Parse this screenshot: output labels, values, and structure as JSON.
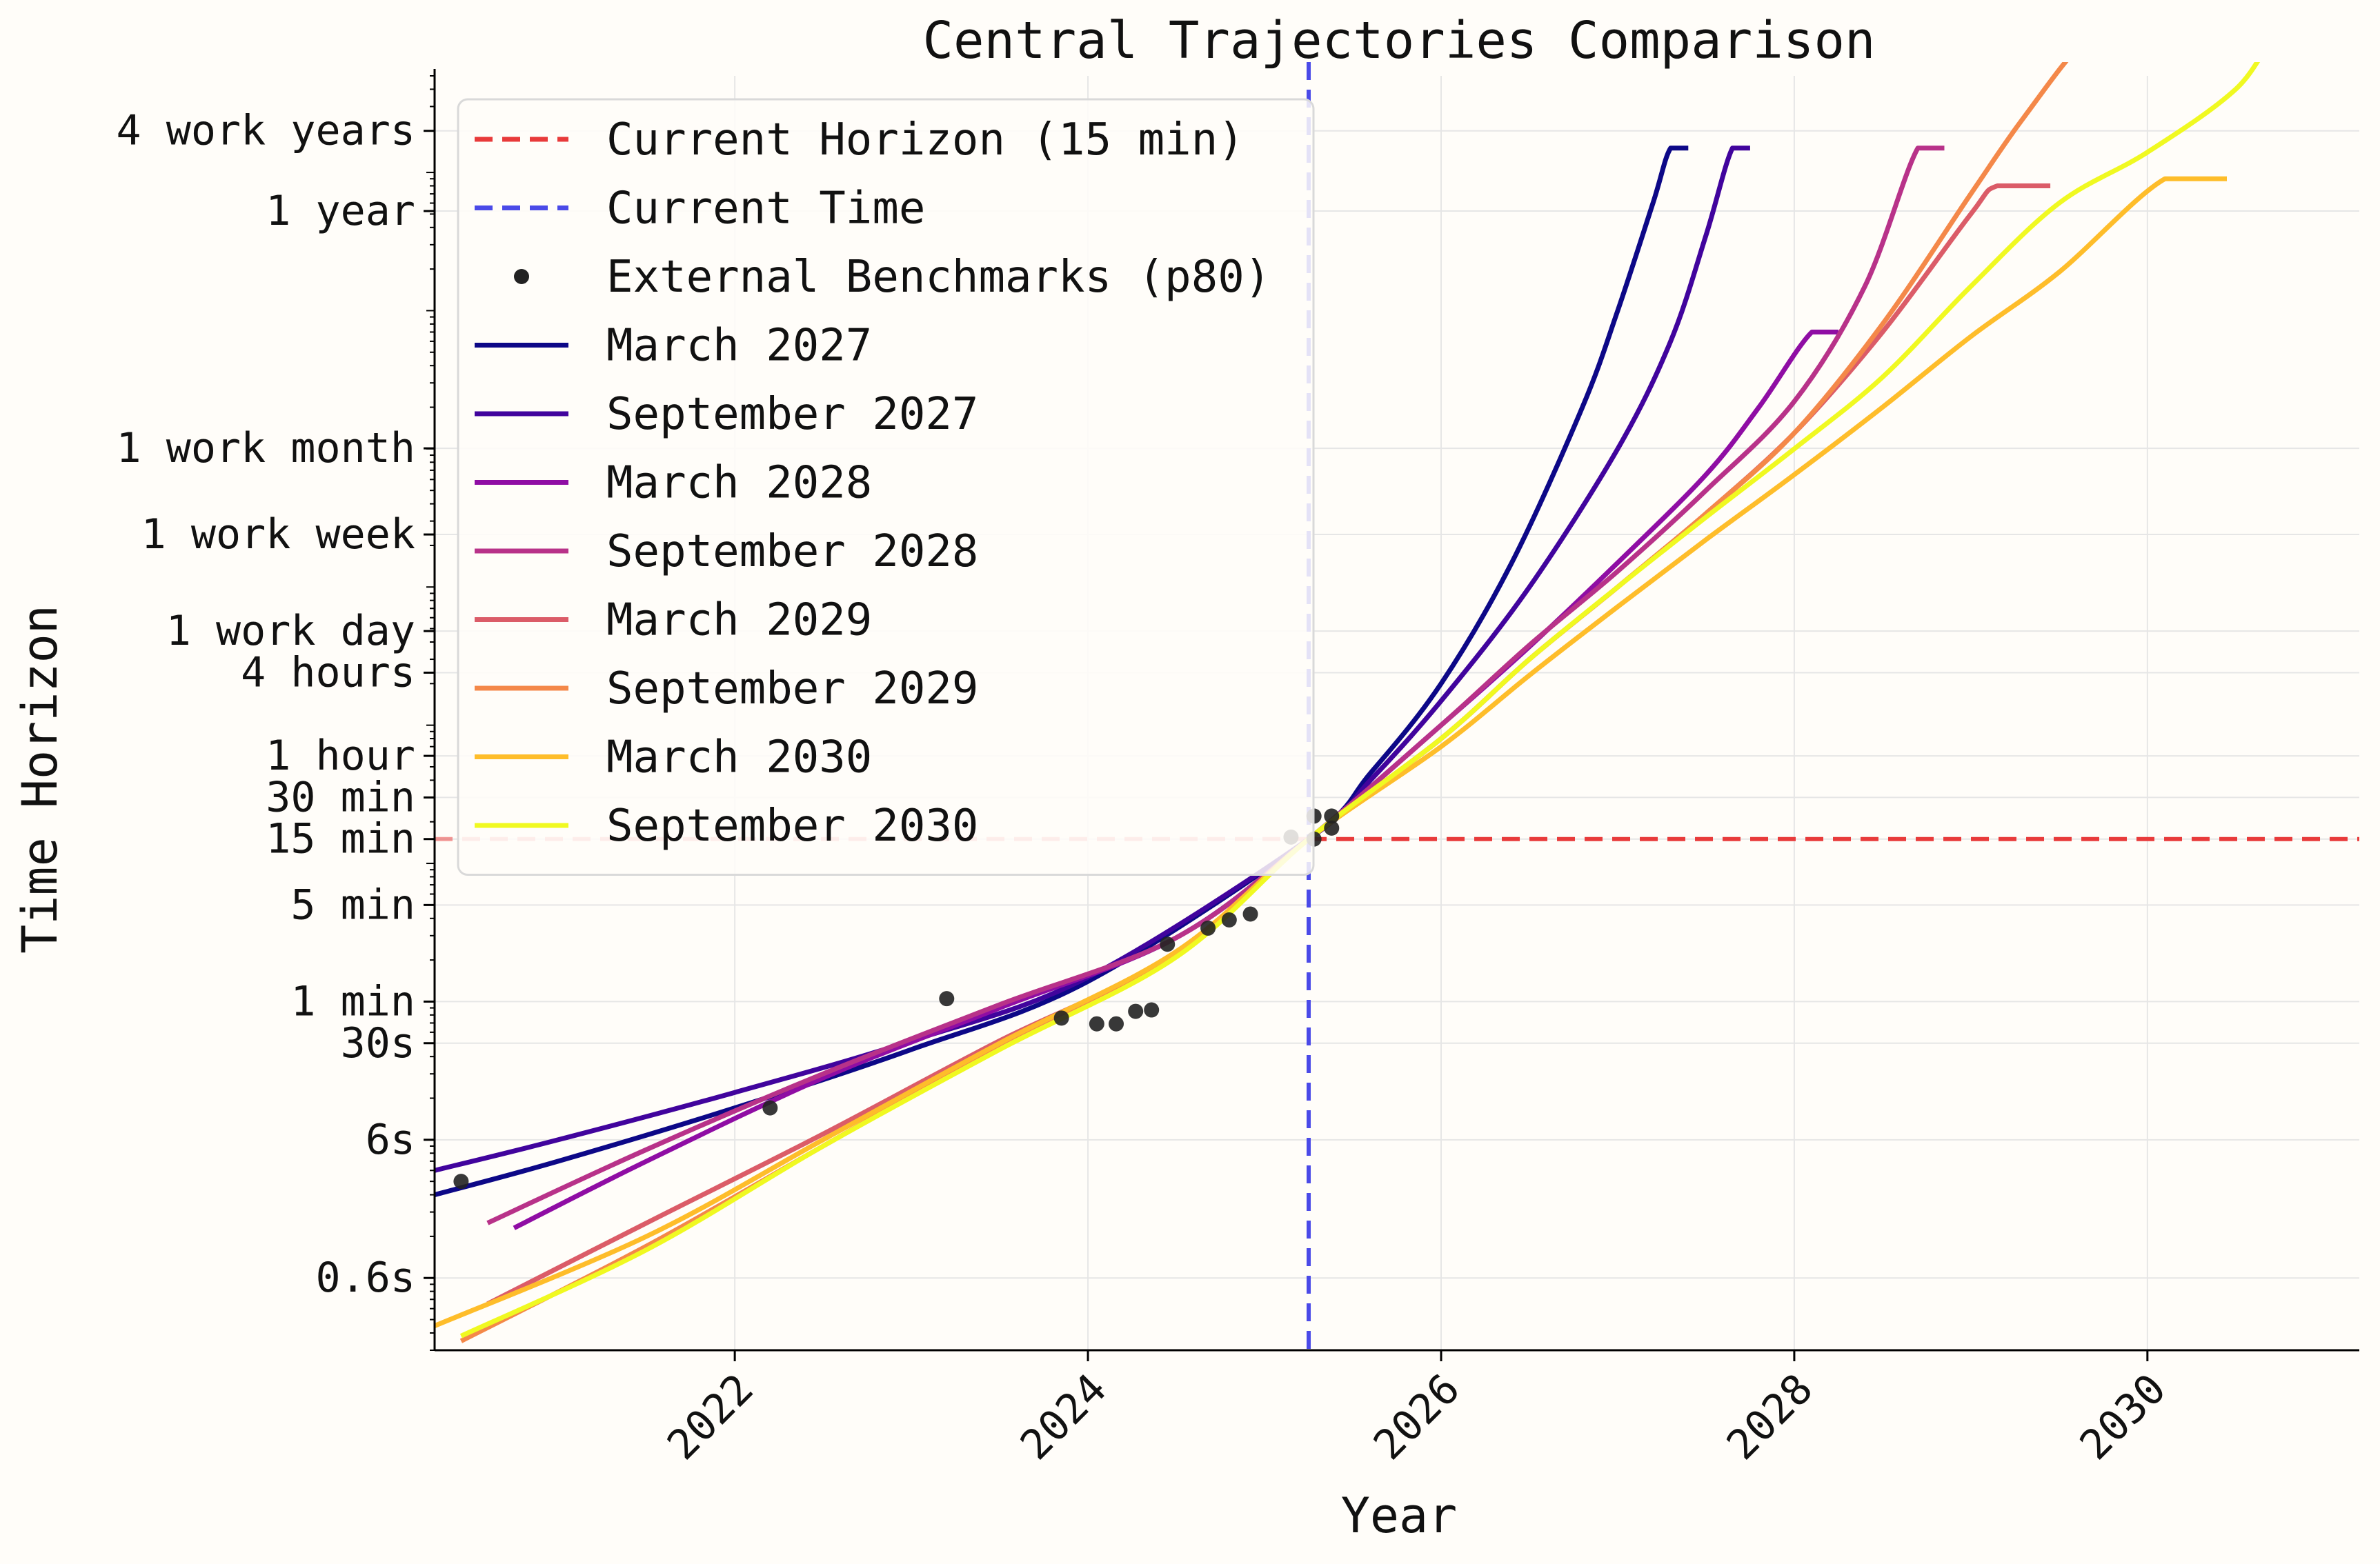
{
  "chart_data": {
    "type": "line",
    "title": "Central Trajectories Comparison",
    "xlabel": "Year",
    "ylabel": "Time Horizon",
    "y_scale": "log",
    "y_unit": "minutes",
    "xlim": [
      2020.3,
      2031.2
    ],
    "ylim": [
      0.003,
      5000000
    ],
    "grid": true,
    "legend_position": "top-left",
    "x_ticks": [
      {
        "value": 2022,
        "label": "2022"
      },
      {
        "value": 2024,
        "label": "2024"
      },
      {
        "value": 2026,
        "label": "2026"
      },
      {
        "value": 2028,
        "label": "2028"
      },
      {
        "value": 2030,
        "label": "2030"
      }
    ],
    "y_ticks": [
      {
        "value": 0.01,
        "label": "0.6s"
      },
      {
        "value": 0.1,
        "label": "6s"
      },
      {
        "value": 0.5,
        "label": "30s"
      },
      {
        "value": 1,
        "label": "1 min"
      },
      {
        "value": 5,
        "label": "5 min"
      },
      {
        "value": 15,
        "label": "15 min"
      },
      {
        "value": 30,
        "label": "30 min"
      },
      {
        "value": 60,
        "label": "1 hour"
      },
      {
        "value": 240,
        "label": "4 hours"
      },
      {
        "value": 480,
        "label": "1 work day"
      },
      {
        "value": 2400,
        "label": "1 work week"
      },
      {
        "value": 10080,
        "label": "1 work month"
      },
      {
        "value": 525600,
        "label": "1 year"
      },
      {
        "value": 2000000,
        "label": "4 work years"
      }
    ],
    "reference_lines": [
      {
        "name": "Current Horizon (15 min)",
        "orientation": "horizontal",
        "value": 15,
        "color": "#e83a3a",
        "style": "dashed"
      },
      {
        "name": "Current Time",
        "orientation": "vertical",
        "value": 2025.25,
        "color": "#4a4ae8",
        "style": "dashed"
      }
    ],
    "benchmarks": {
      "name": "External Benchmarks (p80)",
      "color": "#222222",
      "points": [
        {
          "x": 2020.45,
          "y": 0.05
        },
        {
          "x": 2022.2,
          "y": 0.17
        },
        {
          "x": 2023.2,
          "y": 1.05
        },
        {
          "x": 2023.85,
          "y": 0.76
        },
        {
          "x": 2024.05,
          "y": 0.69
        },
        {
          "x": 2024.16,
          "y": 0.69
        },
        {
          "x": 2024.27,
          "y": 0.85
        },
        {
          "x": 2024.36,
          "y": 0.87
        },
        {
          "x": 2024.45,
          "y": 2.6
        },
        {
          "x": 2024.68,
          "y": 3.4
        },
        {
          "x": 2024.8,
          "y": 3.9
        },
        {
          "x": 2024.92,
          "y": 4.3
        },
        {
          "x": 2025.15,
          "y": 15.5
        },
        {
          "x": 2025.28,
          "y": 15
        },
        {
          "x": 2025.28,
          "y": 22
        },
        {
          "x": 2025.38,
          "y": 22
        },
        {
          "x": 2025.38,
          "y": 18
        }
      ]
    },
    "series": [
      {
        "name": "March 2027",
        "color": "#0d0887",
        "x": [
          2020.3,
          2021.0,
          2022.0,
          2023.0,
          2024.0,
          2025.25,
          2025.6,
          2026.0,
          2026.4,
          2026.8,
          2027.0,
          2027.2,
          2027.3,
          2027.4
        ],
        "y": [
          0.04,
          0.07,
          0.17,
          0.45,
          1.4,
          15,
          45,
          200,
          1500,
          20000,
          100000,
          600000,
          1500000,
          1500000
        ]
      },
      {
        "name": "September 2027",
        "color": "#41049d",
        "x": [
          2020.3,
          2021.0,
          2022.0,
          2023.0,
          2024.0,
          2025.25,
          2025.6,
          2026.0,
          2026.5,
          2027.0,
          2027.3,
          2027.5,
          2027.65,
          2027.75
        ],
        "y": [
          0.06,
          0.1,
          0.22,
          0.52,
          1.5,
          15,
          40,
          150,
          1000,
          10000,
          60000,
          350000,
          1500000,
          1500000
        ]
      },
      {
        "name": "March 2028",
        "color": "#8f0da4",
        "x": [
          2020.75,
          2021.5,
          2022.5,
          2023.5,
          2024.5,
          2025.25,
          2026.0,
          2026.5,
          2027.0,
          2027.5,
          2027.8,
          2028.1,
          2028.25
        ],
        "y": [
          0.023,
          0.07,
          0.28,
          0.9,
          2.9,
          15,
          100,
          370,
          1500,
          6500,
          20000,
          70000,
          70000
        ]
      },
      {
        "name": "September 2028",
        "color": "#b83289",
        "x": [
          2020.6,
          2021.5,
          2022.5,
          2023.5,
          2024.5,
          2025.25,
          2026.0,
          2026.5,
          2027.0,
          2027.5,
          2028.0,
          2028.4,
          2028.7,
          2028.85
        ],
        "y": [
          0.025,
          0.085,
          0.3,
          0.95,
          2.9,
          15,
          100,
          380,
          1300,
          5000,
          22000,
          150000,
          1500000,
          1500000
        ]
      },
      {
        "name": "March 2029",
        "color": "#db5c68",
        "x": [
          2020.6,
          2021.5,
          2022.5,
          2023.5,
          2024.5,
          2025.25,
          2026.0,
          2026.5,
          2027.0,
          2027.5,
          2028.0,
          2028.5,
          2029.0,
          2029.15,
          2029.45
        ],
        "y": [
          0.0065,
          0.025,
          0.11,
          0.52,
          2.2,
          15,
          80,
          300,
          1000,
          3400,
          13000,
          70000,
          500000,
          800000,
          800000
        ]
      },
      {
        "name": "September 2029",
        "color": "#f48849",
        "x": [
          2020.45,
          2021.5,
          2022.5,
          2023.5,
          2024.5,
          2025.25,
          2026.0,
          2026.5,
          2027.0,
          2027.5,
          2028.0,
          2028.5,
          2029.0,
          2029.3,
          2029.65,
          2029.85
        ],
        "y": [
          0.0035,
          0.017,
          0.09,
          0.48,
          2.2,
          15,
          80,
          300,
          1000,
          3400,
          13000,
          80000,
          700000,
          2500000,
          9000000,
          9000000
        ]
      },
      {
        "name": "March 2030",
        "color": "#febd2a",
        "x": [
          2020.3,
          2021.5,
          2022.5,
          2023.5,
          2024.5,
          2025.25,
          2026.0,
          2026.5,
          2027.0,
          2027.5,
          2028.0,
          2028.5,
          2029.0,
          2029.5,
          2030.1,
          2030.45
        ],
        "y": [
          0.0045,
          0.02,
          0.1,
          0.5,
          2.3,
          15,
          70,
          230,
          720,
          2200,
          6500,
          20000,
          65000,
          190000,
          900000,
          900000
        ]
      },
      {
        "name": "September 2030",
        "color": "#f0f921",
        "x": [
          2020.45,
          2021.5,
          2022.5,
          2023.5,
          2024.5,
          2025.25,
          2026.0,
          2026.5,
          2027.0,
          2027.5,
          2028.0,
          2028.5,
          2029.0,
          2029.5,
          2030.0,
          2030.5,
          2030.8,
          2031.2
        ],
        "y": [
          0.0038,
          0.016,
          0.09,
          0.45,
          2.1,
          15,
          80,
          300,
          1000,
          3200,
          10000,
          33000,
          150000,
          600000,
          1400000,
          4000000,
          12000000,
          12000000
        ]
      }
    ]
  }
}
